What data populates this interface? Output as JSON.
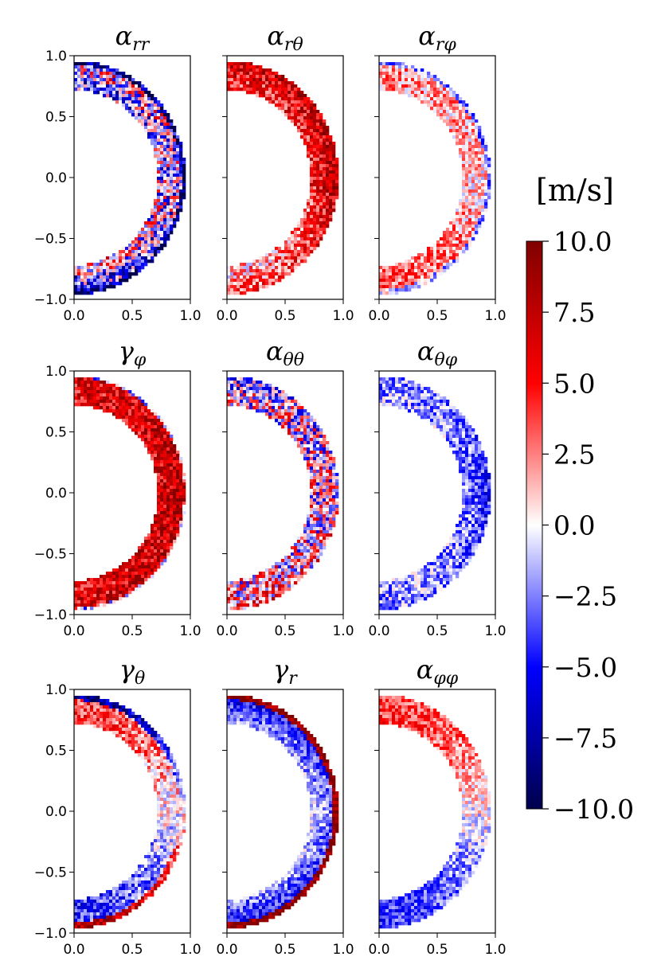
{
  "chart_data": {
    "type": "heatmap",
    "description_kind": "3x3 grid of meridional-plane maps (half annulus) sharing one diverging colorbar",
    "colormap": "seismic",
    "colors": {
      "min": "#00004c",
      "negative": "#0000ff",
      "zero": "#ffffff",
      "positive": "#ff0000",
      "max": "#800000"
    },
    "shared_axes": {
      "xlim": [
        0.0,
        1.0
      ],
      "ylim": [
        -1.0,
        1.0
      ],
      "xticks": [
        "0.0",
        "0.5",
        "1.0"
      ],
      "yticks": [
        "1.0",
        "0.5",
        "0.0",
        "−0.5",
        "−1.0"
      ],
      "shell_inner_radius": 0.72,
      "shell_outer_radius": 0.96,
      "grid": false
    },
    "colorbar": {
      "label": "[m/s]",
      "vmin": -10.0,
      "vmax": 10.0,
      "ticks": [
        "10.0",
        "7.5",
        "5.0",
        "2.5",
        "0.0",
        "−2.5",
        "−5.0",
        "−7.5",
        "−10.0"
      ]
    },
    "panels": [
      {
        "title": "αrr",
        "title_base": "α",
        "title_sub": "rr",
        "pattern": "noisy mix, outer edge strongly negative",
        "mean": -1.0,
        "amp": 6.0,
        "seed": 11
      },
      {
        "title": "αrθ",
        "title_base": "α",
        "title_sub": "rθ",
        "pattern": "mostly positive, stronger outward",
        "mean": 5.0,
        "amp": 3.5,
        "seed": 23
      },
      {
        "title": "αrφ",
        "title_base": "α",
        "title_sub": "rφ",
        "pattern": "weak mixed, positive near poles",
        "mean": 1.0,
        "amp": 3.0,
        "seed": 37
      },
      {
        "title": "γφ",
        "title_base": "γ",
        "title_sub": "φ",
        "pattern": "strongly positive, peak at equator",
        "mean": 6.0,
        "amp": 3.5,
        "seed": 41
      },
      {
        "title": "αθθ",
        "title_base": "α",
        "title_sub": "θθ",
        "pattern": "noisy mix, slightly positive",
        "mean": 0.5,
        "amp": 6.0,
        "seed": 53
      },
      {
        "title": "αθφ",
        "title_base": "α",
        "title_sub": "θφ",
        "pattern": "mostly negative, strongest mid-latitudes",
        "mean": -5.0,
        "amp": 3.0,
        "seed": 67
      },
      {
        "title": "γθ",
        "title_base": "γ",
        "title_sub": "θ",
        "pattern": "antisymmetric: north positive, south negative, outer rim reversed",
        "mean": 0.0,
        "amp": 3.0,
        "seed": 79
      },
      {
        "title": "γr",
        "title_base": "γ",
        "title_sub": "r",
        "pattern": "inner part negative, outer rim strongly positive",
        "mean": -6.0,
        "amp": 2.5,
        "seed": 83
      },
      {
        "title": "αφφ",
        "title_base": "α",
        "title_sub": "φφ",
        "pattern": "north positive, south negative",
        "mean": 0.0,
        "amp": 2.5,
        "seed": 97
      }
    ]
  }
}
